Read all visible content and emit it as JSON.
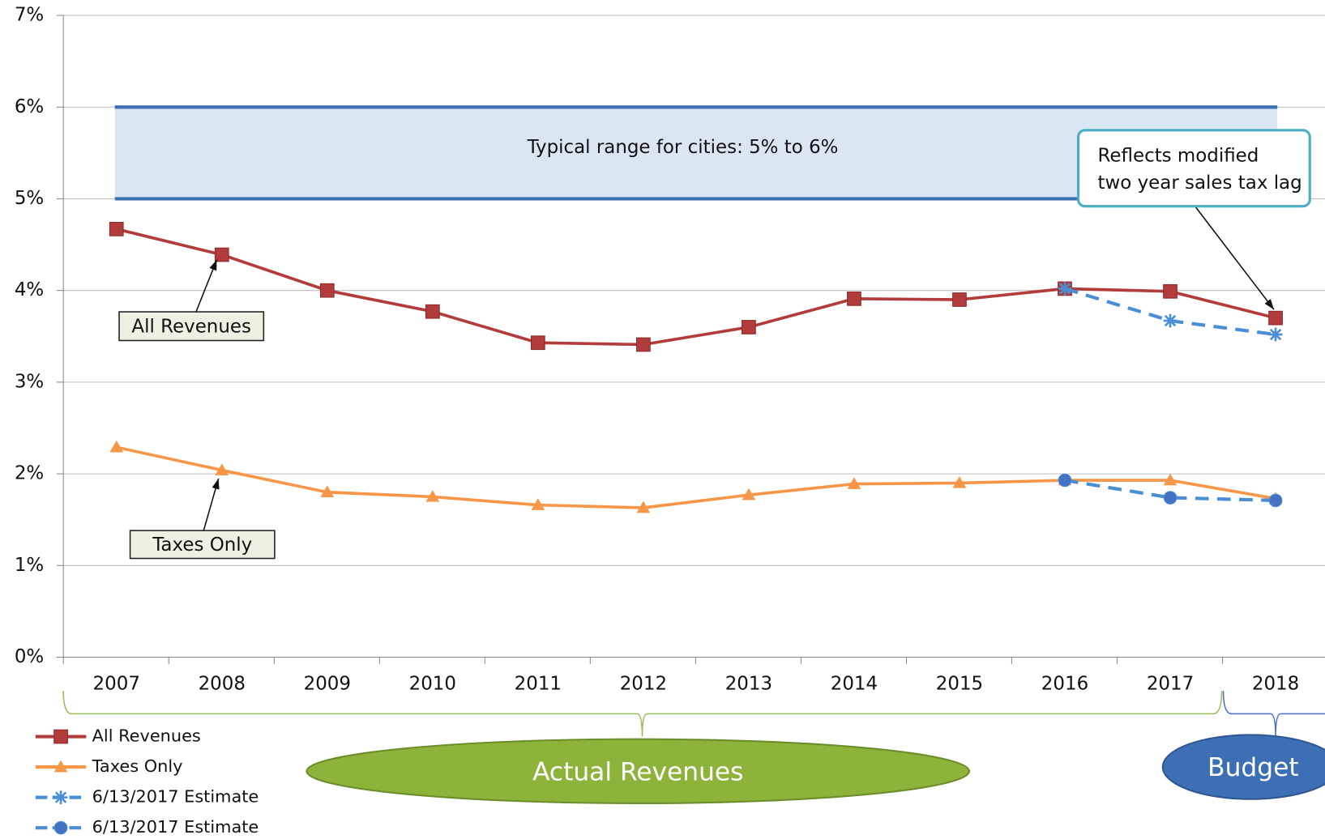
{
  "chart_data": {
    "type": "line",
    "categories": [
      "2007",
      "2008",
      "2009",
      "2010",
      "2011",
      "2012",
      "2013",
      "2014",
      "2015",
      "2016",
      "2017",
      "2018"
    ],
    "series": [
      {
        "name": "All Revenues",
        "color": "#b23b3b",
        "marker": "square",
        "dashed": false,
        "values": [
          4.67,
          4.39,
          4.0,
          3.77,
          3.43,
          3.41,
          3.6,
          3.91,
          3.9,
          4.02,
          3.99,
          3.7
        ]
      },
      {
        "name": "Taxes Only",
        "color": "#f79646",
        "marker": "triangle",
        "dashed": false,
        "values": [
          2.29,
          2.04,
          1.8,
          1.75,
          1.66,
          1.63,
          1.77,
          1.89,
          1.9,
          1.93,
          1.93,
          1.73
        ]
      },
      {
        "name": "6/13/2017 Estimate",
        "color": "#4a8fd4",
        "marker": "asterisk",
        "dashed": true,
        "values": [
          null,
          null,
          null,
          null,
          null,
          null,
          null,
          null,
          null,
          4.02,
          3.67,
          3.52
        ]
      },
      {
        "name": "6/13/2017 Estimate",
        "color": "#4a8fd4",
        "marker": "circle",
        "dashed": true,
        "values": [
          null,
          null,
          null,
          null,
          null,
          null,
          null,
          null,
          null,
          1.93,
          1.74,
          1.71
        ]
      }
    ],
    "ylim": [
      0,
      7
    ],
    "yticks": [
      {
        "value": 0,
        "label": "0%"
      },
      {
        "value": 1,
        "label": "1%"
      },
      {
        "value": 2,
        "label": "2%"
      },
      {
        "value": 3,
        "label": "3%"
      },
      {
        "value": 4,
        "label": "4%"
      },
      {
        "value": 5,
        "label": "5%"
      },
      {
        "value": 6,
        "label": "6%"
      },
      {
        "value": 7,
        "label": "7%"
      }
    ],
    "grid": true,
    "band": {
      "range": [
        5,
        6
      ],
      "color": "#dbe6f3",
      "edge": "#3d6fb5",
      "label": "Typical range for cities: 5% to 6%"
    },
    "annotations": {
      "lag": [
        "Reflects modified",
        "two year sales tax lag"
      ],
      "all_revenues": "All Revenues",
      "taxes_only": "Taxes Only",
      "actual": "Actual Revenues",
      "budget": "Budget"
    },
    "legend": "bottom-left"
  }
}
